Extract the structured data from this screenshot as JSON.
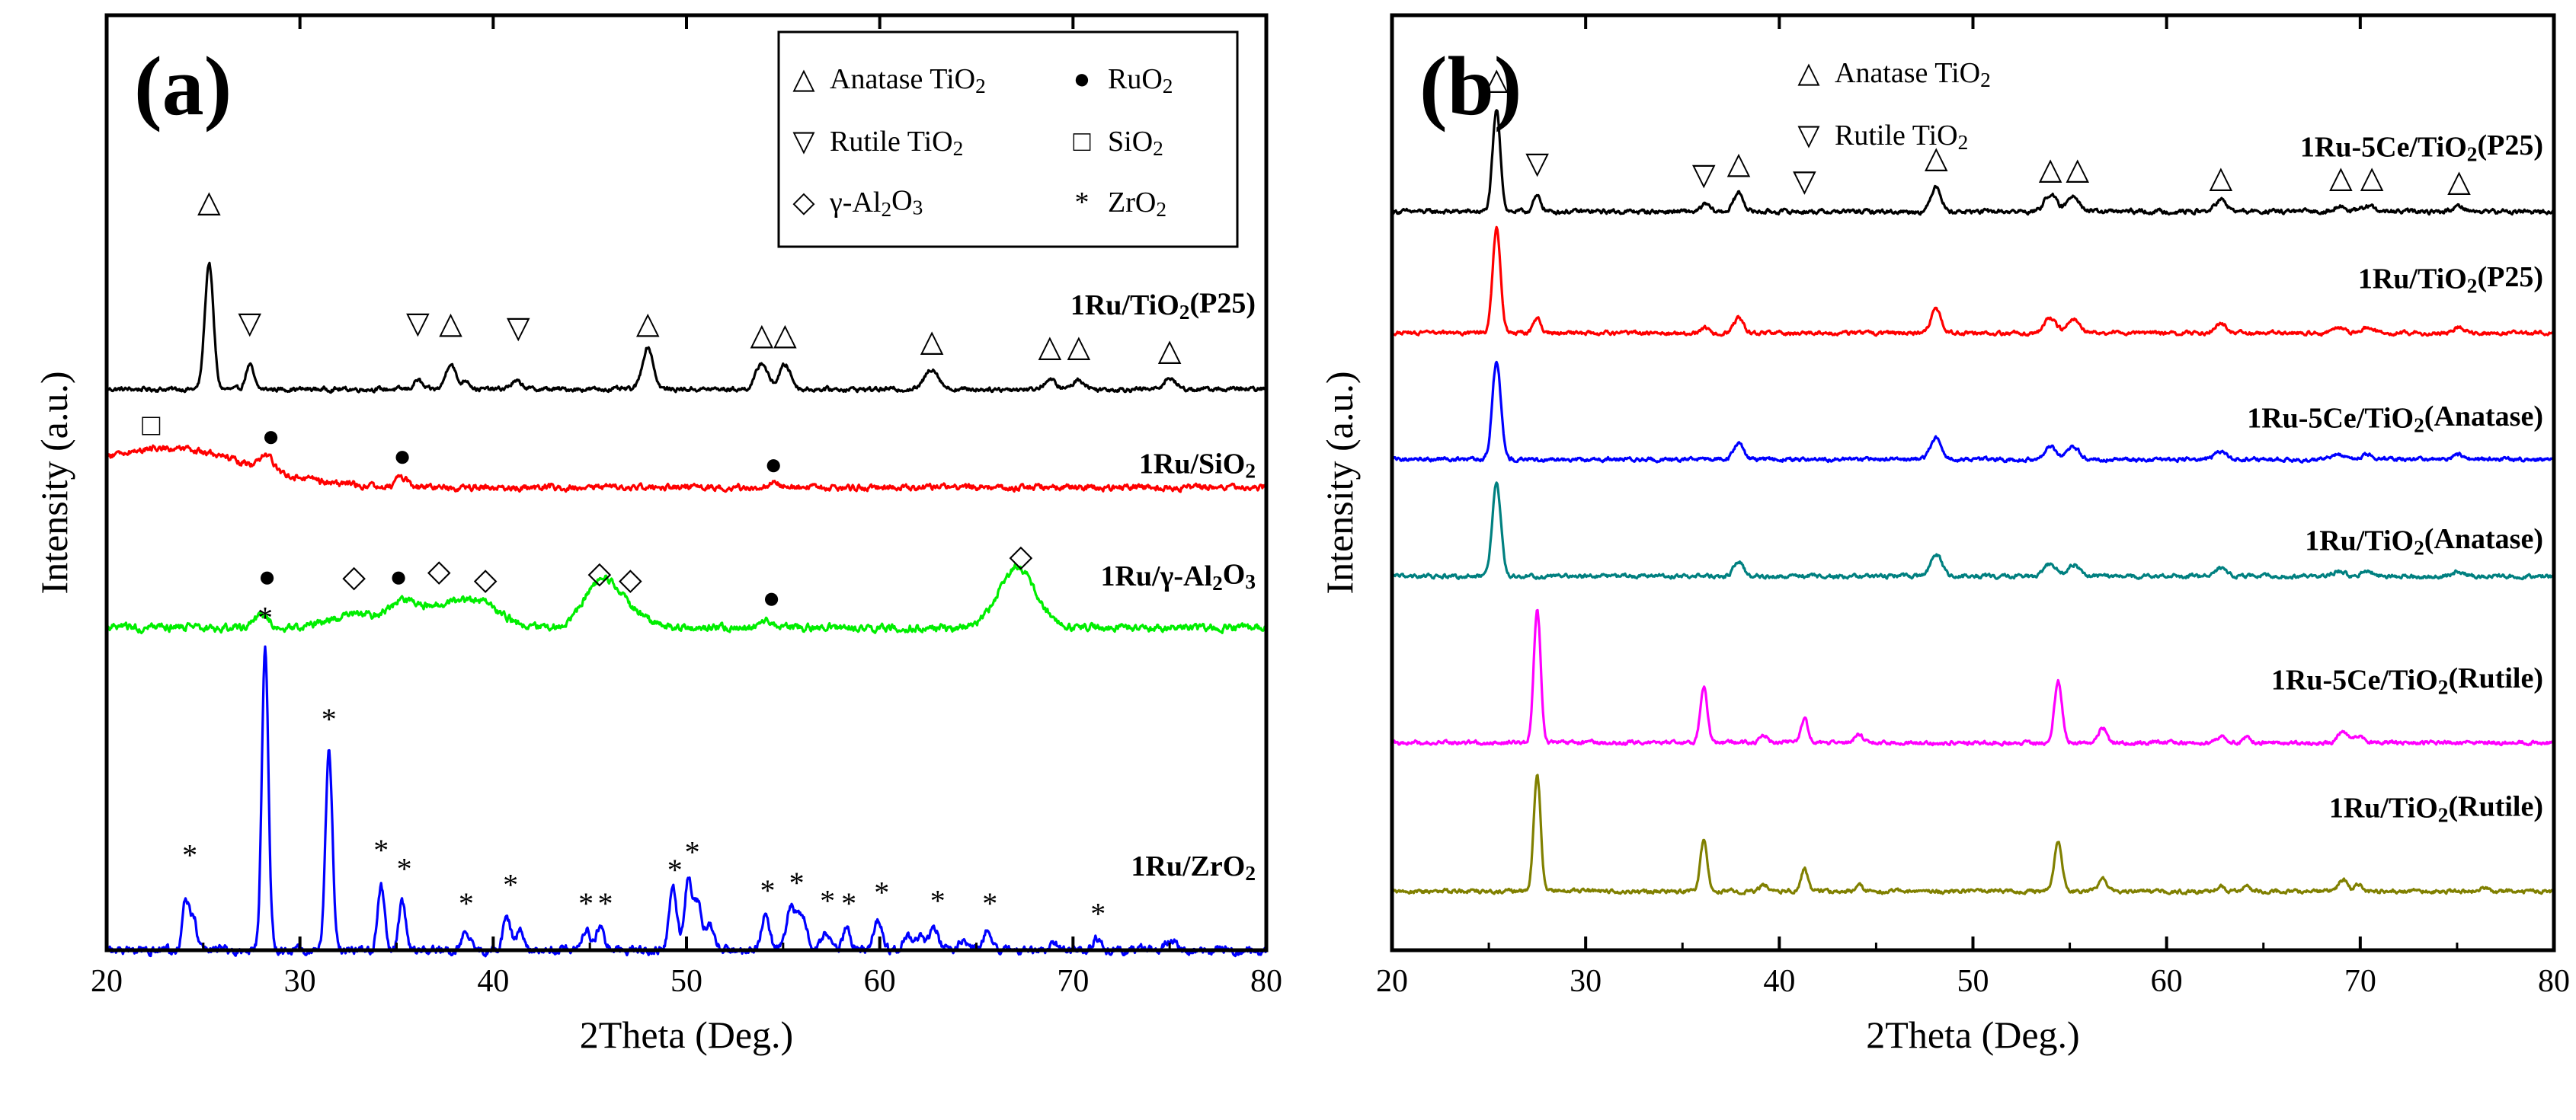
{
  "figure": {
    "panels": [
      "(a)",
      "(b)"
    ]
  },
  "chart_data": [
    {
      "type": "line",
      "panel_label": "(a)",
      "xlabel": "2Theta (Deg.)",
      "ylabel": "Intensity (a.u.)",
      "xlim": [
        20,
        80
      ],
      "xticks": [
        "20",
        "30",
        "40",
        "50",
        "60",
        "70",
        "80"
      ],
      "ylim": [
        0,
        100
      ],
      "legend": {
        "placement": "top-right",
        "entries": [
          {
            "symbol": "△",
            "label": "Anatase TiO₂"
          },
          {
            "symbol": "●",
            "label": "RuO₂"
          },
          {
            "symbol": "▽",
            "label": "Rutile TiO₂"
          },
          {
            "symbol": "□",
            "label": "SiO₂"
          },
          {
            "symbol": "◇",
            "label": "γ-Al₂O₃"
          },
          {
            "symbol": "*",
            "label": "ZrO₂"
          }
        ]
      },
      "series": [
        {
          "name": "1Ru/TiO₂(P25)",
          "color": "#000000",
          "baseline": 60,
          "noise": 0.18,
          "peaks": [
            [
              25.3,
              13.5,
              0.22
            ],
            [
              27.4,
              2.6,
              0.2
            ],
            [
              36.1,
              1.0,
              0.2
            ],
            [
              37.8,
              2.8,
              0.25
            ],
            [
              38.6,
              1.0,
              0.2
            ],
            [
              41.2,
              0.8,
              0.3
            ],
            [
              48.0,
              4.5,
              0.28
            ],
            [
              53.9,
              2.8,
              0.3
            ],
            [
              55.1,
              2.6,
              0.3
            ],
            [
              62.7,
              2.2,
              0.35
            ],
            [
              68.8,
              1.0,
              0.3
            ],
            [
              70.3,
              1.0,
              0.3
            ],
            [
              75.0,
              1.2,
              0.3
            ]
          ]
        },
        {
          "name": "1Ru/SiO₂",
          "color": "#ff0000",
          "baseline": 49.5,
          "noise": 0.25,
          "broad": [
            [
              23,
              4.2,
              4.2
            ],
            [
              28.3,
              1.5,
              0.35
            ],
            [
              35.3,
              1.0,
              0.3
            ],
            [
              54.5,
              0.5,
              0.3
            ]
          ]
        },
        {
          "name": "1Ru/γ-Al₂O₃",
          "color": "#00ee00",
          "baseline": 34.5,
          "noise": 0.3,
          "broad": [
            [
              28,
              1.3,
              0.4
            ],
            [
              32.8,
              1.4,
              1.2
            ],
            [
              35.2,
              1.6,
              0.6
            ],
            [
              37.2,
              2.4,
              1.6
            ],
            [
              39.5,
              1.9,
              1.0
            ],
            [
              45.6,
              4.4,
              0.9
            ],
            [
              46.8,
              1.4,
              1.2
            ],
            [
              54.2,
              0.6,
              0.4
            ],
            [
              67.1,
              6.4,
              0.95
            ]
          ]
        },
        {
          "name": "1Ru/ZrO₂",
          "color": "#0000ff",
          "baseline": 0,
          "noise": 0.35,
          "peaks": [
            [
              24.1,
              5.4,
              0.16
            ],
            [
              24.5,
              3.5,
              0.16
            ],
            [
              28.2,
              32.0,
              0.17
            ],
            [
              31.5,
              21.0,
              0.18
            ],
            [
              34.2,
              6.8,
              0.18
            ],
            [
              35.3,
              5.1,
              0.17
            ],
            [
              38.6,
              2.1,
              0.2
            ],
            [
              40.7,
              3.2,
              0.2
            ],
            [
              41.4,
              2.0,
              0.2
            ],
            [
              44.8,
              2.2,
              0.2
            ],
            [
              45.5,
              2.4,
              0.2
            ],
            [
              49.3,
              6.5,
              0.2
            ],
            [
              50.1,
              7.6,
              0.2
            ],
            [
              50.6,
              4.8,
              0.2
            ],
            [
              51.2,
              2.6,
              0.22
            ],
            [
              54.1,
              4.0,
              0.2
            ],
            [
              55.4,
              4.5,
              0.25
            ],
            [
              56.0,
              3.2,
              0.25
            ],
            [
              57.2,
              2.0,
              0.2
            ],
            [
              58.3,
              2.3,
              0.2
            ],
            [
              59.9,
              3.3,
              0.22
            ],
            [
              61.4,
              1.5,
              0.2
            ],
            [
              62.1,
              1.6,
              0.2
            ],
            [
              62.8,
              2.5,
              0.22
            ],
            [
              64.3,
              1.2,
              0.2
            ],
            [
              65.6,
              2.4,
              0.22
            ],
            [
              69.1,
              0.8,
              0.2
            ],
            [
              71.2,
              1.2,
              0.2
            ],
            [
              75.1,
              1.2,
              0.25
            ]
          ]
        }
      ],
      "curve_labels": [
        {
          "text": "1Ru/TiO₂(P25)",
          "x": 80,
          "y": 68
        },
        {
          "text": "1Ru/SiO₂",
          "x": 80,
          "y": 51
        },
        {
          "text": "1Ru/γ-Al₂O₃",
          "x": 80,
          "y": 39
        },
        {
          "text": "1Ru/ZrO₂",
          "x": 80,
          "y": 8
        }
      ],
      "annotations": [
        {
          "symbol": "△",
          "x": 25.3,
          "y": 79
        },
        {
          "symbol": "▽",
          "x": 27.4,
          "y": 66
        },
        {
          "symbol": "▽",
          "x": 36.1,
          "y": 66
        },
        {
          "symbol": "△",
          "x": 37.8,
          "y": 66
        },
        {
          "symbol": "▽",
          "x": 41.3,
          "y": 65.5
        },
        {
          "symbol": "△",
          "x": 48.0,
          "y": 66
        },
        {
          "symbol": "△",
          "x": 53.9,
          "y": 64.8
        },
        {
          "symbol": "△",
          "x": 55.1,
          "y": 64.8
        },
        {
          "symbol": "△",
          "x": 62.7,
          "y": 64.1
        },
        {
          "symbol": "△",
          "x": 68.8,
          "y": 63.5
        },
        {
          "symbol": "△",
          "x": 70.3,
          "y": 63.5
        },
        {
          "symbol": "△",
          "x": 75.0,
          "y": 63.1
        },
        {
          "symbol": "□",
          "x": 22.3,
          "y": 55.1
        },
        {
          "symbol": "●",
          "x": 28.5,
          "y": 53.9
        },
        {
          "symbol": "●",
          "x": 35.3,
          "y": 51.8
        },
        {
          "symbol": "●",
          "x": 54.5,
          "y": 50.9
        },
        {
          "symbol": "●",
          "x": 28.3,
          "y": 38.9
        },
        {
          "symbol": "◇",
          "x": 32.8,
          "y": 38.9
        },
        {
          "symbol": "●",
          "x": 35.1,
          "y": 38.9
        },
        {
          "symbol": "◇",
          "x": 37.2,
          "y": 39.5
        },
        {
          "symbol": "◇",
          "x": 39.6,
          "y": 38.6
        },
        {
          "symbol": "◇",
          "x": 45.5,
          "y": 39.3
        },
        {
          "symbol": "◇",
          "x": 47.1,
          "y": 38.6
        },
        {
          "symbol": "●",
          "x": 54.4,
          "y": 36.6
        },
        {
          "symbol": "◇",
          "x": 67.3,
          "y": 41.1
        },
        {
          "symbol": "*",
          "x": 28.2,
          "y": 34.5
        },
        {
          "symbol": "*",
          "x": 31.5,
          "y": 23.6
        },
        {
          "symbol": "*",
          "x": 34.2,
          "y": 9.6
        },
        {
          "symbol": "*",
          "x": 35.4,
          "y": 7.6
        },
        {
          "symbol": "*",
          "x": 24.3,
          "y": 9.1
        },
        {
          "symbol": "*",
          "x": 38.6,
          "y": 3.9
        },
        {
          "symbol": "*",
          "x": 40.9,
          "y": 5.9
        },
        {
          "symbol": "*",
          "x": 44.8,
          "y": 3.9
        },
        {
          "symbol": "*",
          "x": 45.8,
          "y": 3.9
        },
        {
          "symbol": "*",
          "x": 49.4,
          "y": 7.5
        },
        {
          "symbol": "*",
          "x": 50.3,
          "y": 9.4
        },
        {
          "symbol": "*",
          "x": 54.2,
          "y": 5.3
        },
        {
          "symbol": "*",
          "x": 55.7,
          "y": 6.1
        },
        {
          "symbol": "*",
          "x": 57.3,
          "y": 4.2
        },
        {
          "symbol": "*",
          "x": 58.4,
          "y": 3.9
        },
        {
          "symbol": "*",
          "x": 60.1,
          "y": 5.1
        },
        {
          "symbol": "*",
          "x": 63.0,
          "y": 4.2
        },
        {
          "symbol": "*",
          "x": 65.7,
          "y": 3.9
        },
        {
          "symbol": "*",
          "x": 71.3,
          "y": 2.8
        }
      ]
    },
    {
      "type": "line",
      "panel_label": "(b)",
      "xlabel": "2Theta (Deg.)",
      "ylabel": "Intensity (a.u.)",
      "xlim": [
        20,
        80
      ],
      "xticks": [
        "20",
        "30",
        "40",
        "50",
        "60",
        "70",
        "80"
      ],
      "ylim": [
        0,
        100
      ],
      "legend": {
        "placement": "top-center",
        "entries": [
          {
            "symbol": "△",
            "label": "Anatase TiO₂"
          },
          {
            "symbol": "▽",
            "label": "Rutile TiO₂"
          }
        ]
      },
      "series": [
        {
          "name": "1Ru-5Ce/TiO₂(P25)",
          "color": "#000000",
          "baseline": 79,
          "noise": 0.18,
          "peaks": [
            [
              25.4,
              10.8,
              0.2
            ],
            [
              27.5,
              1.6,
              0.2
            ],
            [
              36.2,
              0.8,
              0.2
            ],
            [
              37.9,
              2.0,
              0.25
            ],
            [
              48.1,
              2.8,
              0.25
            ],
            [
              54.0,
              1.9,
              0.3
            ],
            [
              55.2,
              1.8,
              0.3
            ],
            [
              62.8,
              1.2,
              0.3
            ],
            [
              68.9,
              0.6,
              0.3
            ],
            [
              70.4,
              0.6,
              0.3
            ],
            [
              75.1,
              0.6,
              0.3
            ]
          ]
        },
        {
          "name": "1Ru/TiO₂(P25)",
          "color": "#ff0000",
          "baseline": 66,
          "noise": 0.16,
          "peaks": [
            [
              25.4,
              11.2,
              0.2
            ],
            [
              27.5,
              1.5,
              0.2
            ],
            [
              36.2,
              0.6,
              0.2
            ],
            [
              37.9,
              1.6,
              0.25
            ],
            [
              48.1,
              2.6,
              0.25
            ],
            [
              54.0,
              1.6,
              0.3
            ],
            [
              55.2,
              1.6,
              0.3
            ],
            [
              62.8,
              1.1,
              0.3
            ],
            [
              68.9,
              0.5,
              0.3
            ],
            [
              70.4,
              0.6,
              0.3
            ],
            [
              75.1,
              0.6,
              0.3
            ]
          ]
        },
        {
          "name": "1Ru-5Ce/TiO₂(Anatase)",
          "color": "#0000ff",
          "baseline": 52.5,
          "noise": 0.16,
          "peaks": [
            [
              25.4,
              10.5,
              0.22
            ],
            [
              37.9,
              1.8,
              0.25
            ],
            [
              48.1,
              2.3,
              0.28
            ],
            [
              54.0,
              1.4,
              0.3
            ],
            [
              55.2,
              1.3,
              0.3
            ],
            [
              62.8,
              0.9,
              0.3
            ],
            [
              68.9,
              0.5,
              0.3
            ],
            [
              70.4,
              0.5,
              0.3
            ],
            [
              75.1,
              0.5,
              0.3
            ]
          ]
        },
        {
          "name": "1Ru/TiO₂(Anatase)",
          "color": "#008080",
          "baseline": 40,
          "noise": 0.16,
          "peaks": [
            [
              25.4,
              9.8,
              0.22
            ],
            [
              37.9,
              1.6,
              0.25
            ],
            [
              48.1,
              2.4,
              0.28
            ],
            [
              54.0,
              1.4,
              0.3
            ],
            [
              55.2,
              1.3,
              0.3
            ],
            [
              62.8,
              0.9,
              0.3
            ],
            [
              68.9,
              0.5,
              0.3
            ],
            [
              70.4,
              0.6,
              0.3
            ],
            [
              75.1,
              0.5,
              0.3
            ]
          ]
        },
        {
          "name": "1Ru-5Ce/TiO₂(Rutile)",
          "color": "#ff00ff",
          "baseline": 22.2,
          "noise": 0.16,
          "peaks": [
            [
              27.5,
              14.2,
              0.18
            ],
            [
              36.1,
              6.1,
              0.18
            ],
            [
              39.2,
              0.8,
              0.2
            ],
            [
              41.3,
              2.6,
              0.18
            ],
            [
              44.1,
              0.9,
              0.2
            ],
            [
              54.4,
              6.6,
              0.2
            ],
            [
              56.7,
              1.6,
              0.2
            ],
            [
              62.8,
              0.6,
              0.2
            ],
            [
              64.1,
              0.6,
              0.2
            ],
            [
              69.1,
              1.4,
              0.22
            ],
            [
              69.9,
              0.8,
              0.2
            ]
          ]
        },
        {
          "name": "1Ru/TiO₂(Rutile)",
          "color": "#808000",
          "baseline": 6.3,
          "noise": 0.16,
          "peaks": [
            [
              27.5,
              12.3,
              0.18
            ],
            [
              36.1,
              5.3,
              0.18
            ],
            [
              39.2,
              0.7,
              0.2
            ],
            [
              41.3,
              2.4,
              0.18
            ],
            [
              44.1,
              0.7,
              0.2
            ],
            [
              54.4,
              5.3,
              0.2
            ],
            [
              56.7,
              1.5,
              0.2
            ],
            [
              62.8,
              0.5,
              0.2
            ],
            [
              64.1,
              0.5,
              0.2
            ],
            [
              69.1,
              1.2,
              0.22
            ],
            [
              69.9,
              0.8,
              0.2
            ],
            [
              76.4,
              0.4,
              0.2
            ]
          ]
        }
      ],
      "curve_labels": [
        {
          "text": "1Ru-5Ce/TiO₂(P25)",
          "x": 80,
          "y": 84.9
        },
        {
          "text": "1Ru/TiO₂(P25)",
          "x": 80,
          "y": 70.8
        },
        {
          "text": "1Ru-5Ce/TiO₂(Anatase)",
          "x": 80,
          "y": 55.9
        },
        {
          "text": "1Ru/TiO₂(Anatase)",
          "x": 80,
          "y": 42.8
        },
        {
          "text": "1Ru-5Ce/TiO₂(Rutile)",
          "x": 80,
          "y": 27.9
        },
        {
          "text": "1Ru/TiO₂(Rutile)",
          "x": 80,
          "y": 14.2
        }
      ],
      "annotations": [
        {
          "symbol": "△",
          "x": 25.4,
          "y": 92.1
        },
        {
          "symbol": "▽",
          "x": 27.5,
          "y": 83.1
        },
        {
          "symbol": "▽",
          "x": 36.1,
          "y": 81.9
        },
        {
          "symbol": "△",
          "x": 37.9,
          "y": 83.1
        },
        {
          "symbol": "▽",
          "x": 41.3,
          "y": 81.2
        },
        {
          "symbol": "△",
          "x": 48.1,
          "y": 83.7
        },
        {
          "symbol": "△",
          "x": 54.0,
          "y": 82.5
        },
        {
          "symbol": "△",
          "x": 55.4,
          "y": 82.5
        },
        {
          "symbol": "△",
          "x": 62.8,
          "y": 81.6
        },
        {
          "symbol": "△",
          "x": 69.0,
          "y": 81.6
        },
        {
          "symbol": "△",
          "x": 70.6,
          "y": 81.6
        },
        {
          "symbol": "△",
          "x": 75.1,
          "y": 81.2
        }
      ]
    }
  ]
}
